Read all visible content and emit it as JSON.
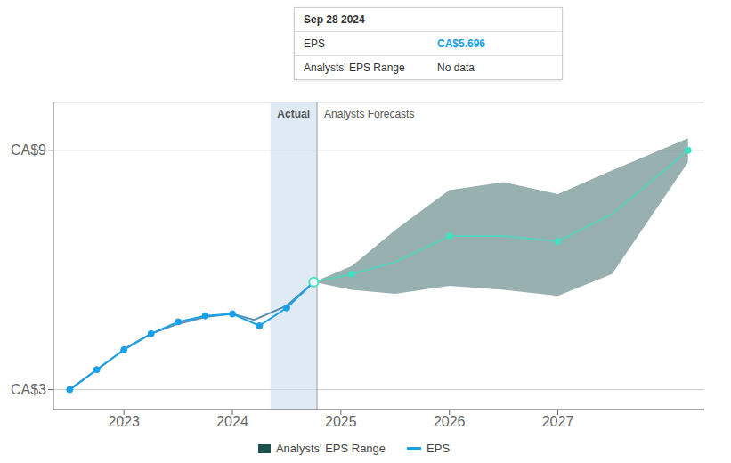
{
  "chart_data": {
    "type": "line",
    "xlim": [
      2022.35,
      2028.35
    ],
    "xticks": [
      2023,
      2024,
      2025,
      2026,
      2027
    ],
    "ylim": [
      2.5,
      10.2
    ],
    "yticks": [
      {
        "value": 3,
        "label": "CA$3"
      },
      {
        "value": 9,
        "label": "CA$9"
      }
    ],
    "grid": true,
    "series": [
      {
        "name": "Analysts' EPS Range",
        "type": "range",
        "color": "#1a5050",
        "x": [
          2024.75,
          2025.1,
          2025.5,
          2026.0,
          2026.5,
          2027.0,
          2027.5,
          2028.2
        ],
        "lower": [
          5.696,
          5.5,
          5.4,
          5.6,
          5.5,
          5.35,
          5.9,
          8.7
        ],
        "upper": [
          5.696,
          6.1,
          7.0,
          8.0,
          8.2,
          7.9,
          8.5,
          9.3
        ]
      },
      {
        "type": "line",
        "color": "#1a6090",
        "x": [
          2022.5,
          2022.65,
          2022.85,
          2023.05,
          2023.25,
          2023.5,
          2023.75,
          2024.0,
          2024.2,
          2024.5,
          2024.75
        ],
        "values": [
          3.0,
          3.3,
          3.7,
          4.1,
          4.4,
          4.65,
          4.82,
          4.9,
          4.75,
          5.1,
          5.696
        ]
      },
      {
        "name": "EPS",
        "type": "line",
        "color": "#1aa0e8",
        "marker": "o",
        "x": [
          2022.5,
          2022.75,
          2023.0,
          2023.25,
          2023.5,
          2023.75,
          2024.0,
          2024.25,
          2024.5,
          2024.75
        ],
        "values": [
          3.0,
          3.5,
          4.0,
          4.4,
          4.7,
          4.85,
          4.9,
          4.6,
          5.05,
          5.696
        ]
      },
      {
        "type": "line",
        "color": "#40e0c0",
        "x": [
          2024.75,
          2025.1,
          2025.5,
          2026.0,
          2026.5,
          2027.0,
          2027.5,
          2028.2
        ],
        "values": [
          5.696,
          5.9,
          6.2,
          6.85,
          6.85,
          6.72,
          7.4,
          9.0
        ]
      },
      {
        "type": "scatter",
        "color": "#40e0c0",
        "marker": "open",
        "x": [
          2024.75
        ],
        "values": [
          5.696
        ]
      },
      {
        "type": "scatter",
        "color": "#40e0c0",
        "marker": "o",
        "x": [
          2025.1,
          2026.0,
          2027.0,
          2028.2
        ],
        "values": [
          5.9,
          6.85,
          6.72,
          9.0
        ]
      }
    ],
    "highlight": [
      2024.35,
      2024.78
    ],
    "vline": {
      "x": 2024.78,
      "labels": [
        "Actual",
        "Analysts Forecasts"
      ]
    },
    "tooltip": {
      "title": "Sep 28 2024",
      "rows": [
        {
          "label": "EPS",
          "value": 5.696,
          "value_label": "CA$5.696",
          "color": "#1aa0e8"
        },
        {
          "label": "Analysts' EPS Range",
          "value_label": "No data"
        }
      ]
    }
  }
}
